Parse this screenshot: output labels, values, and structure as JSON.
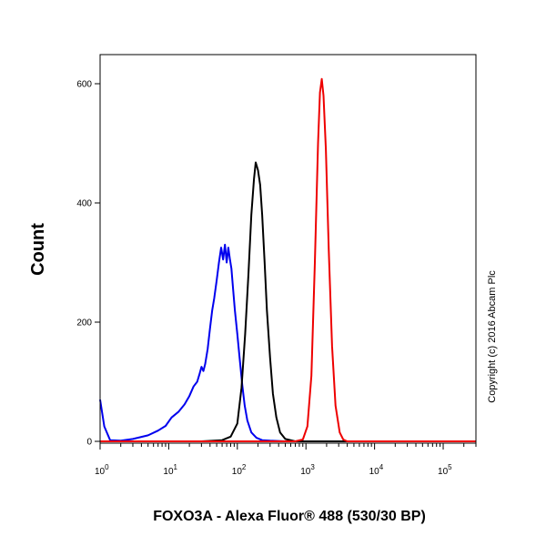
{
  "chart_data": {
    "type": "line",
    "xscale": "log",
    "xlim": [
      1,
      300000
    ],
    "ylim": [
      0,
      650
    ],
    "xlabel": "FOXO3A - Alexa Fluor® 488 (530/30 BP)",
    "ylabel": "Count",
    "yticks": [
      "0",
      "200",
      "400",
      "600"
    ],
    "xticks": [
      {
        "base": "10",
        "exp": "0"
      },
      {
        "base": "10",
        "exp": "1"
      },
      {
        "base": "10",
        "exp": "2"
      },
      {
        "base": "10",
        "exp": "3"
      },
      {
        "base": "10",
        "exp": "4"
      },
      {
        "base": "10",
        "exp": "5"
      }
    ],
    "annotation": "Copyright (c) 2016 Abcam Plc",
    "grid": false,
    "series": [
      {
        "color": "#0000ee",
        "x": [
          1,
          1.15,
          1.4,
          2,
          3,
          5,
          7,
          9,
          11,
          14,
          17,
          20,
          23,
          26,
          28,
          30,
          32,
          34,
          37,
          40,
          43,
          46,
          50,
          54,
          58,
          62,
          66,
          70,
          74,
          78,
          82,
          86,
          92,
          100,
          108,
          118,
          128,
          140,
          160,
          190,
          230,
          300,
          500,
          1000,
          300000
        ],
        "y": [
          70,
          25,
          2,
          1,
          4,
          10,
          18,
          26,
          40,
          50,
          62,
          76,
          92,
          100,
          112,
          125,
          118,
          130,
          155,
          190,
          220,
          240,
          270,
          300,
          325,
          305,
          330,
          300,
          325,
          305,
          290,
          260,
          220,
          180,
          140,
          95,
          60,
          35,
          15,
          6,
          2,
          1,
          0,
          0,
          0
        ]
      },
      {
        "color": "#000000",
        "x": [
          30,
          60,
          80,
          100,
          115,
          130,
          145,
          160,
          175,
          185,
          200,
          215,
          230,
          250,
          270,
          300,
          330,
          370,
          420,
          500,
          700,
          300000
        ],
        "y": [
          0,
          2,
          8,
          30,
          90,
          180,
          280,
          380,
          440,
          468,
          455,
          430,
          380,
          300,
          220,
          140,
          80,
          40,
          15,
          4,
          0,
          0
        ]
      },
      {
        "color": "#ee0000",
        "x": [
          1,
          700,
          900,
          1050,
          1200,
          1350,
          1500,
          1600,
          1700,
          1800,
          1950,
          2150,
          2400,
          2700,
          3100,
          3500,
          4000,
          300000
        ],
        "y": [
          0,
          0,
          3,
          25,
          110,
          300,
          500,
          585,
          608,
          580,
          490,
          320,
          160,
          60,
          15,
          3,
          0,
          0
        ]
      }
    ]
  }
}
